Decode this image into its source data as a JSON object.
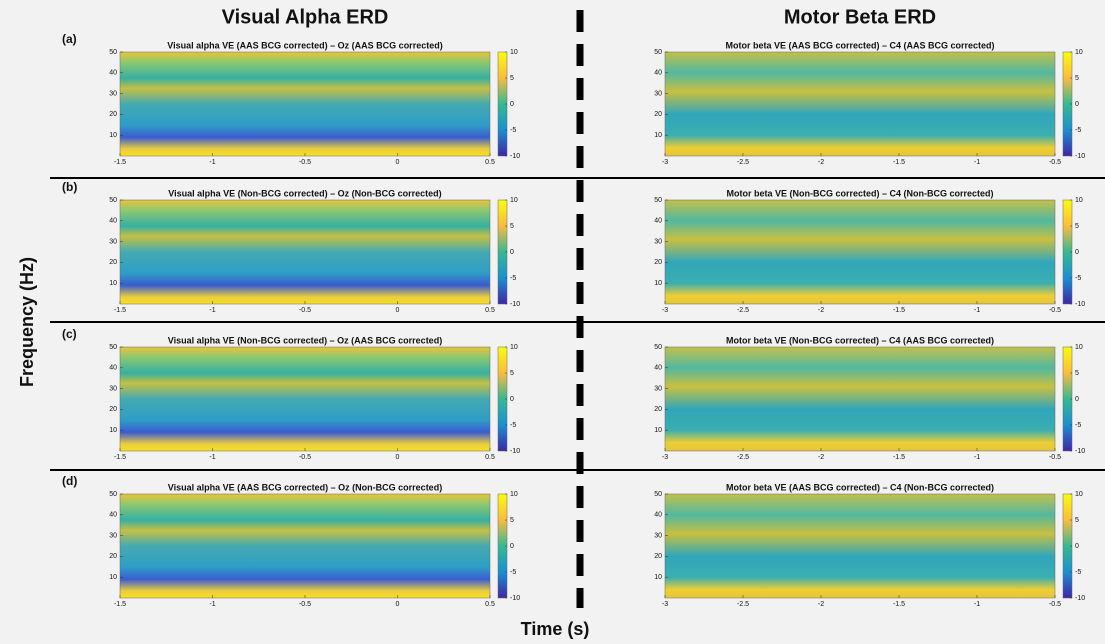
{
  "left_title": "Visual Alpha ERD",
  "right_title": "Motor Beta ERD",
  "y_label": "Frequency (Hz)",
  "x_label": "Time (s)",
  "rows": [
    {
      "label": "(a)",
      "panels": [
        {
          "title": "Visual alpha VE (AAS BCG corrected) – Oz (AAS BCG corrected)",
          "xlim": [
            -1.5,
            0.5
          ],
          "xticks": [
            -1.5,
            -1,
            -0.5,
            0,
            0.5
          ],
          "ylim": [
            0,
            50
          ],
          "yticks": [
            10,
            20,
            30,
            40,
            50
          ],
          "clim": [
            -10,
            10
          ],
          "cticks": [
            -10,
            -5,
            0,
            5,
            10
          ]
        },
        {
          "title": "Motor beta VE (AAS BCG corrected) – C4 (AAS BCG corrected)",
          "xlim": [
            -3,
            -0.5
          ],
          "xticks": [
            -3,
            -2.5,
            -2,
            -1.5,
            -1,
            -0.5
          ],
          "ylim": [
            0,
            50
          ],
          "yticks": [
            10,
            20,
            30,
            40,
            50
          ],
          "clim": [
            -10,
            10
          ],
          "cticks": [
            -10,
            -5,
            0,
            5,
            10
          ]
        }
      ]
    },
    {
      "label": "(b)",
      "panels": [
        {
          "title": "Visual alpha VE (Non-BCG corrected) – Oz (Non-BCG corrected)",
          "xlim": [
            -1.5,
            0.5
          ],
          "xticks": [
            -1.5,
            -1,
            -0.5,
            0,
            0.5
          ],
          "ylim": [
            0,
            50
          ],
          "yticks": [
            10,
            20,
            30,
            40,
            50
          ],
          "clim": [
            -10,
            10
          ],
          "cticks": [
            -10,
            -5,
            0,
            5,
            10
          ]
        },
        {
          "title": "Motor beta VE (Non-BCG corrected) – C4 (Non-BCG corrected)",
          "xlim": [
            -3,
            -0.5
          ],
          "xticks": [
            -3,
            -2.5,
            -2,
            -1.5,
            -1,
            -0.5
          ],
          "ylim": [
            0,
            50
          ],
          "yticks": [
            10,
            20,
            30,
            40,
            50
          ],
          "clim": [
            -10,
            10
          ],
          "cticks": [
            -10,
            -5,
            0,
            5,
            10
          ]
        }
      ]
    },
    {
      "label": "(c)",
      "panels": [
        {
          "title": "Visual alpha VE (Non-BCG corrected) – Oz (AAS BCG corrected)",
          "xlim": [
            -1.5,
            0.5
          ],
          "xticks": [
            -1.5,
            -1,
            -0.5,
            0,
            0.5
          ],
          "ylim": [
            0,
            50
          ],
          "yticks": [
            10,
            20,
            30,
            40,
            50
          ],
          "clim": [
            -10,
            10
          ],
          "cticks": [
            -10,
            -5,
            0,
            5,
            10
          ]
        },
        {
          "title": "Motor beta VE (Non-BCG corrected) – C4 (AAS BCG corrected)",
          "xlim": [
            -3,
            -0.5
          ],
          "xticks": [
            -3,
            -2.5,
            -2,
            -1.5,
            -1,
            -0.5
          ],
          "ylim": [
            0,
            50
          ],
          "yticks": [
            10,
            20,
            30,
            40,
            50
          ],
          "clim": [
            -10,
            10
          ],
          "cticks": [
            -10,
            -5,
            0,
            5,
            10
          ]
        }
      ]
    },
    {
      "label": "(d)",
      "panels": [
        {
          "title": "Visual alpha VE (AAS BCG corrected) – Oz (Non-BCG corrected)",
          "xlim": [
            -1.5,
            0.5
          ],
          "xticks": [
            -1.5,
            -1,
            -0.5,
            0,
            0.5
          ],
          "ylim": [
            0,
            50
          ],
          "yticks": [
            10,
            20,
            30,
            40,
            50
          ],
          "clim": [
            -10,
            10
          ],
          "cticks": [
            -10,
            -5,
            0,
            5,
            10
          ]
        },
        {
          "title": "Motor beta VE (AAS BCG corrected) – C4 (Non-BCG corrected)",
          "xlim": [
            -3,
            -0.5
          ],
          "xticks": [
            -3,
            -2.5,
            -2,
            -1.5,
            -1,
            -0.5
          ],
          "ylim": [
            0,
            50
          ],
          "yticks": [
            10,
            20,
            30,
            40,
            50
          ],
          "clim": [
            -10,
            10
          ],
          "cticks": [
            -10,
            -5,
            0,
            5,
            10
          ]
        }
      ]
    }
  ]
}
